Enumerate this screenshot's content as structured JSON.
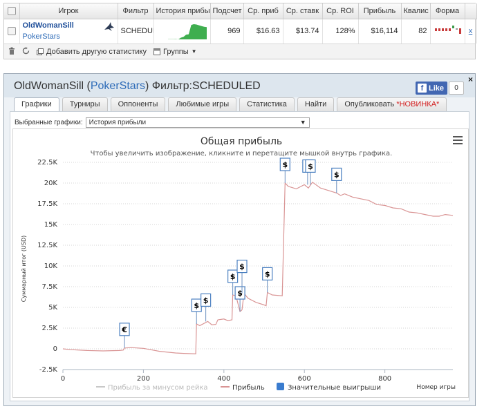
{
  "table": {
    "headers": [
      "Игрок",
      "Фильтр",
      "История прибы",
      "Подсчет",
      "Ср. приб",
      "Ср. ставк",
      "Ср. ROI",
      "Прибыль",
      "Квалис",
      "Форма"
    ],
    "row": {
      "player_name": "OldWomanSill",
      "player_room": "PokerStars",
      "filter": "SCHEDULED",
      "count": "969",
      "avg_profit": "$16.63",
      "avg_stake": "$13.74",
      "avg_roi": "128%",
      "profit": "$16,114",
      "quality": "82",
      "remove": "x"
    }
  },
  "toolbar": {
    "add_stats": "Добавить другую статистику",
    "groups": "Группы"
  },
  "window": {
    "title_player": "OldWomanSill",
    "title_room": "PokerStars",
    "title_filter": "Фильтр:SCHEDULED",
    "fb_like": "Like",
    "fb_count": "0",
    "close": "×",
    "tabs": [
      "Графики",
      "Турниры",
      "Оппоненты",
      "Любимые игры",
      "Статистика",
      "Найти",
      "Опубликовать"
    ],
    "tab_new_badge": "*НОВИНКА*",
    "selector_label": "Выбранные графики:",
    "selector_value": "История прибыли"
  },
  "colors": {
    "profit_line": "#d99494",
    "rake_line": "#c8c8c8",
    "big_win": "#3a7ccf",
    "link": "#2f6cb8"
  },
  "chart_data": {
    "type": "line",
    "title": "Общая прибыль",
    "subtitle": "Чтобы увеличить изображение, кликните и перетащите мышкой внутрь графика.",
    "xlabel": "Номер игры",
    "ylabel": "Суммарный итог (USD)",
    "xlim": [
      0,
      969
    ],
    "ylim": [
      -2500,
      22500
    ],
    "x_ticks": [
      0,
      200,
      400,
      600,
      800
    ],
    "y_ticks": [
      -2500,
      0,
      2500,
      5000,
      7500,
      10000,
      12500,
      15000,
      17500,
      20000,
      22500
    ],
    "y_tick_labels": [
      "-2.5K",
      "0",
      "2.5K",
      "5K",
      "7.5K",
      "10K",
      "12.5K",
      "15K",
      "17.5K",
      "20K",
      "22.5K"
    ],
    "grid": "horizontal dotted",
    "legend": [
      "Прибыль за минусом рейка",
      "Прибыль",
      "Значительные выигрыши"
    ],
    "series": [
      {
        "name": "Прибыль",
        "points": [
          [
            0,
            0
          ],
          [
            20,
            -100
          ],
          [
            60,
            -200
          ],
          [
            100,
            -250
          ],
          [
            140,
            -200
          ],
          [
            150,
            -150
          ],
          [
            153,
            100
          ],
          [
            170,
            150
          ],
          [
            200,
            60
          ],
          [
            240,
            -300
          ],
          [
            280,
            -500
          ],
          [
            300,
            -550
          ],
          [
            330,
            -600
          ],
          [
            332,
            3000
          ],
          [
            340,
            2800
          ],
          [
            360,
            3300
          ],
          [
            370,
            2900
          ],
          [
            380,
            2950
          ],
          [
            385,
            3500
          ],
          [
            400,
            3600
          ],
          [
            410,
            3400
          ],
          [
            420,
            3500
          ],
          [
            422,
            6500
          ],
          [
            430,
            6400
          ],
          [
            440,
            4500
          ],
          [
            445,
            4700
          ],
          [
            450,
            6700
          ],
          [
            460,
            6100
          ],
          [
            480,
            5600
          ],
          [
            500,
            5300
          ],
          [
            505,
            5200
          ],
          [
            508,
            6800
          ],
          [
            520,
            6500
          ],
          [
            545,
            6400
          ],
          [
            552,
            20000
          ],
          [
            560,
            19600
          ],
          [
            580,
            19300
          ],
          [
            600,
            19800
          ],
          [
            610,
            19400
          ],
          [
            620,
            20100
          ],
          [
            640,
            19400
          ],
          [
            660,
            19100
          ],
          [
            680,
            18800
          ],
          [
            690,
            18500
          ],
          [
            700,
            18700
          ],
          [
            720,
            18300
          ],
          [
            740,
            18100
          ],
          [
            760,
            17900
          ],
          [
            780,
            17400
          ],
          [
            800,
            17300
          ],
          [
            820,
            17000
          ],
          [
            840,
            16900
          ],
          [
            860,
            16500
          ],
          [
            880,
            16400
          ],
          [
            900,
            16200
          ],
          [
            920,
            16000
          ],
          [
            935,
            16000
          ],
          [
            950,
            16200
          ],
          [
            969,
            16100
          ]
        ]
      }
    ],
    "big_wins": [
      {
        "x": 153,
        "y": 100,
        "symbol": "€"
      },
      {
        "x": 332,
        "y": 3000,
        "symbol": "$"
      },
      {
        "x": 355,
        "y": 3300,
        "symbol": "$"
      },
      {
        "x": 422,
        "y": 6500,
        "symbol": "$"
      },
      {
        "x": 440,
        "y": 4500,
        "symbol": "$"
      },
      {
        "x": 445,
        "y": 6700,
        "symbol": "$"
      },
      {
        "x": 508,
        "y": 6800,
        "symbol": "$"
      },
      {
        "x": 552,
        "y": 20000,
        "symbol": "$"
      },
      {
        "x": 608,
        "y": 19800,
        "symbol": "$"
      },
      {
        "x": 615,
        "y": 19800,
        "symbol": "$"
      },
      {
        "x": 680,
        "y": 18800,
        "symbol": "$"
      }
    ],
    "history_sparkline": [
      0,
      -50,
      -100,
      100,
      -300,
      2000,
      3000,
      6000,
      6500,
      19000,
      20000,
      19500,
      18500,
      17500,
      16500,
      16100
    ],
    "form": [
      -1,
      -1,
      -1,
      -1,
      -1,
      1,
      0,
      -2
    ]
  }
}
